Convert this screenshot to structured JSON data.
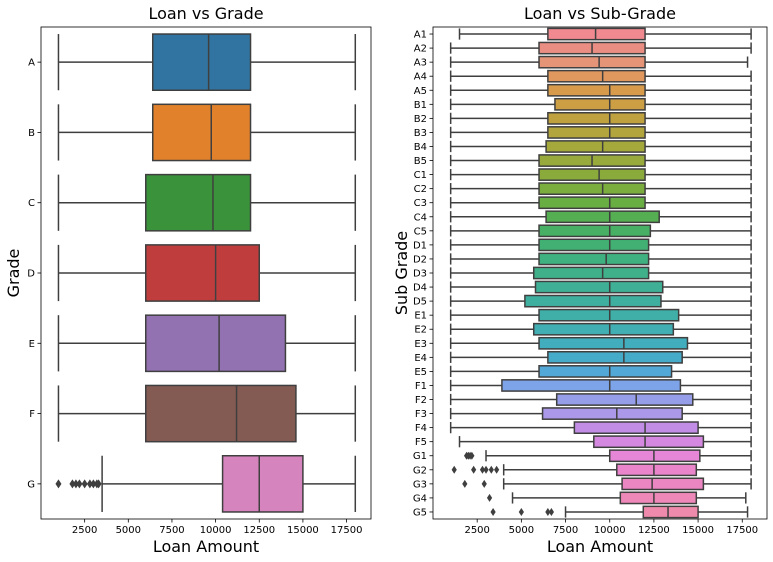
{
  "chart_data": [
    {
      "type": "boxplot",
      "orientation": "horizontal",
      "title": "Loan vs Grade",
      "xlabel": "Loan Amount",
      "ylabel": "Grade",
      "xlim": [
        0,
        18900
      ],
      "xticks": [
        2500,
        5000,
        7500,
        10000,
        12500,
        15000,
        17500
      ],
      "categories": [
        "A",
        "B",
        "C",
        "D",
        "E",
        "F",
        "G"
      ],
      "boxes": [
        {
          "label": "A",
          "whislo": 1000,
          "q1": 6400,
          "med": 9600,
          "q3": 12000,
          "whishi": 18000,
          "fliers": [],
          "color": "#3274a1"
        },
        {
          "label": "B",
          "whislo": 1000,
          "q1": 6400,
          "med": 9750,
          "q3": 12000,
          "whishi": 18000,
          "fliers": [],
          "color": "#e1812c"
        },
        {
          "label": "C",
          "whislo": 1000,
          "q1": 6000,
          "med": 9850,
          "q3": 12000,
          "whishi": 18000,
          "fliers": [],
          "color": "#3a923a"
        },
        {
          "label": "D",
          "whislo": 1000,
          "q1": 6000,
          "med": 10000,
          "q3": 12500,
          "whishi": 18000,
          "fliers": [],
          "color": "#c03d3e"
        },
        {
          "label": "E",
          "whislo": 1000,
          "q1": 6000,
          "med": 10200,
          "q3": 14000,
          "whishi": 18000,
          "fliers": [],
          "color": "#9372b2"
        },
        {
          "label": "F",
          "whislo": 1000,
          "q1": 6000,
          "med": 11200,
          "q3": 14600,
          "whishi": 18000,
          "fliers": [],
          "color": "#845b53"
        },
        {
          "label": "G",
          "whislo": 3500,
          "q1": 10400,
          "med": 12500,
          "q3": 15000,
          "whishi": 18000,
          "fliers": [
            1000,
            1800,
            2000,
            2200,
            2500,
            2800,
            3000,
            3200,
            3300
          ],
          "color": "#d684bd"
        }
      ]
    },
    {
      "type": "boxplot",
      "orientation": "horizontal",
      "title": "Loan vs Sub-Grade",
      "xlabel": "Loan Amount",
      "ylabel": "Sub Grade",
      "xlim": [
        0,
        18900
      ],
      "xticks": [
        2500,
        5000,
        7500,
        10000,
        12500,
        15000,
        17500
      ],
      "categories": [
        "A1",
        "A2",
        "A3",
        "A4",
        "A5",
        "B1",
        "B2",
        "B3",
        "B4",
        "B5",
        "C1",
        "C2",
        "C3",
        "C4",
        "C5",
        "D1",
        "D2",
        "D3",
        "D4",
        "D5",
        "E1",
        "E2",
        "E3",
        "E4",
        "E5",
        "F1",
        "F2",
        "F3",
        "F4",
        "F5",
        "G1",
        "G2",
        "G3",
        "G4",
        "G5"
      ],
      "boxes": [
        {
          "label": "A1",
          "whislo": 1500,
          "q1": 6500,
          "med": 9200,
          "q3": 12000,
          "whishi": 18000,
          "fliers": [],
          "color": "#f08a90"
        },
        {
          "label": "A2",
          "whislo": 1000,
          "q1": 6000,
          "med": 9000,
          "q3": 12000,
          "whishi": 18000,
          "fliers": [],
          "color": "#ea8e83"
        },
        {
          "label": "A3",
          "whislo": 1000,
          "q1": 6000,
          "med": 9400,
          "q3": 12000,
          "whishi": 17800,
          "fliers": [],
          "color": "#e59478"
        },
        {
          "label": "A4",
          "whislo": 1000,
          "q1": 6500,
          "med": 9600,
          "q3": 12000,
          "whishi": 18000,
          "fliers": [],
          "color": "#e0985f"
        },
        {
          "label": "A5",
          "whislo": 1000,
          "q1": 6500,
          "med": 10000,
          "q3": 12000,
          "whishi": 18000,
          "fliers": [],
          "color": "#d89b4c"
        },
        {
          "label": "B1",
          "whislo": 1000,
          "q1": 6900,
          "med": 10000,
          "q3": 12000,
          "whishi": 18000,
          "fliers": [],
          "color": "#cc9f45"
        },
        {
          "label": "B2",
          "whislo": 1000,
          "q1": 6500,
          "med": 10000,
          "q3": 12000,
          "whishi": 18000,
          "fliers": [],
          "color": "#bfa23f"
        },
        {
          "label": "B3",
          "whislo": 1000,
          "q1": 6500,
          "med": 10000,
          "q3": 12000,
          "whishi": 18000,
          "fliers": [],
          "color": "#b2a53d"
        },
        {
          "label": "B4",
          "whislo": 1000,
          "q1": 6400,
          "med": 9600,
          "q3": 12000,
          "whishi": 18000,
          "fliers": [],
          "color": "#a5a83b"
        },
        {
          "label": "B5",
          "whislo": 1000,
          "q1": 6000,
          "med": 9000,
          "q3": 12000,
          "whishi": 18000,
          "fliers": [],
          "color": "#98aa3b"
        },
        {
          "label": "C1",
          "whislo": 1000,
          "q1": 6000,
          "med": 9400,
          "q3": 12000,
          "whishi": 18000,
          "fliers": [],
          "color": "#8aab3c"
        },
        {
          "label": "C2",
          "whislo": 1000,
          "q1": 6000,
          "med": 9600,
          "q3": 12000,
          "whishi": 18000,
          "fliers": [],
          "color": "#7aad3e"
        },
        {
          "label": "C3",
          "whislo": 1000,
          "q1": 6000,
          "med": 10000,
          "q3": 12000,
          "whishi": 18000,
          "fliers": [],
          "color": "#69ae43"
        },
        {
          "label": "C4",
          "whislo": 1000,
          "q1": 6400,
          "med": 10000,
          "q3": 12800,
          "whishi": 18000,
          "fliers": [],
          "color": "#55af52"
        },
        {
          "label": "C5",
          "whislo": 1000,
          "q1": 6000,
          "med": 10000,
          "q3": 12300,
          "whishi": 18000,
          "fliers": [],
          "color": "#47b064"
        },
        {
          "label": "D1",
          "whislo": 1000,
          "q1": 6000,
          "med": 10000,
          "q3": 12200,
          "whishi": 18000,
          "fliers": [],
          "color": "#41b072"
        },
        {
          "label": "D2",
          "whislo": 1000,
          "q1": 6000,
          "med": 9800,
          "q3": 12200,
          "whishi": 18000,
          "fliers": [],
          "color": "#3fb07f"
        },
        {
          "label": "D3",
          "whislo": 1000,
          "q1": 5700,
          "med": 9600,
          "q3": 12200,
          "whishi": 18000,
          "fliers": [],
          "color": "#3fb08a"
        },
        {
          "label": "D4",
          "whislo": 1000,
          "q1": 5800,
          "med": 10000,
          "q3": 13000,
          "whishi": 18000,
          "fliers": [],
          "color": "#3fb095"
        },
        {
          "label": "D5",
          "whislo": 1000,
          "q1": 5200,
          "med": 10000,
          "q3": 12900,
          "whishi": 18000,
          "fliers": [],
          "color": "#3faf9f"
        },
        {
          "label": "E1",
          "whislo": 1000,
          "q1": 6000,
          "med": 10000,
          "q3": 13900,
          "whishi": 18000,
          "fliers": [],
          "color": "#3fafa8"
        },
        {
          "label": "E2",
          "whislo": 1000,
          "q1": 5700,
          "med": 10000,
          "q3": 13600,
          "whishi": 18000,
          "fliers": [],
          "color": "#40aeb2"
        },
        {
          "label": "E3",
          "whislo": 1000,
          "q1": 6000,
          "med": 10800,
          "q3": 14400,
          "whishi": 18000,
          "fliers": [],
          "color": "#42adbc"
        },
        {
          "label": "E4",
          "whislo": 1000,
          "q1": 6500,
          "med": 10800,
          "q3": 14100,
          "whishi": 18000,
          "fliers": [],
          "color": "#46abc8"
        },
        {
          "label": "E5",
          "whislo": 1000,
          "q1": 6000,
          "med": 10000,
          "q3": 13500,
          "whishi": 18000,
          "fliers": [],
          "color": "#52a8d7"
        },
        {
          "label": "F1",
          "whislo": 1000,
          "q1": 3900,
          "med": 10000,
          "q3": 14000,
          "whishi": 18000,
          "fliers": [],
          "color": "#7da4e8"
        },
        {
          "label": "F2",
          "whislo": 1000,
          "q1": 7000,
          "med": 11500,
          "q3": 14700,
          "whishi": 18000,
          "fliers": [],
          "color": "#979ee9"
        },
        {
          "label": "F3",
          "whislo": 1000,
          "q1": 6200,
          "med": 10400,
          "q3": 14100,
          "whishi": 18000,
          "fliers": [],
          "color": "#ac98e9"
        },
        {
          "label": "F4",
          "whislo": 1000,
          "q1": 8000,
          "med": 12000,
          "q3": 15000,
          "whishi": 18000,
          "fliers": [],
          "color": "#c28ee5"
        },
        {
          "label": "F5",
          "whislo": 1500,
          "q1": 9100,
          "med": 12000,
          "q3": 15300,
          "whishi": 18000,
          "fliers": [],
          "color": "#d488e0"
        },
        {
          "label": "G1",
          "whislo": 3000,
          "q1": 10000,
          "med": 12500,
          "q3": 15100,
          "whishi": 18000,
          "fliers": [
            1900,
            2000,
            2100,
            2200
          ],
          "color": "#e586d7"
        },
        {
          "label": "G2",
          "whislo": 4000,
          "q1": 10400,
          "med": 12500,
          "q3": 14900,
          "whishi": 18000,
          "fliers": [
            1200,
            2300,
            2800,
            3000,
            3300,
            3600
          ],
          "color": "#ea85cc"
        },
        {
          "label": "G3",
          "whislo": 4000,
          "q1": 10700,
          "med": 12400,
          "q3": 15300,
          "whishi": 18000,
          "fliers": [
            1800,
            2900
          ],
          "color": "#ec86c3"
        },
        {
          "label": "G4",
          "whislo": 4500,
          "q1": 10600,
          "med": 12500,
          "q3": 14900,
          "whishi": 17700,
          "fliers": [
            3200
          ],
          "color": "#ee88b8"
        },
        {
          "label": "G5",
          "whislo": 7500,
          "q1": 11900,
          "med": 13300,
          "q3": 15000,
          "whishi": 17800,
          "fliers": [
            3400,
            5000,
            6500,
            6700
          ],
          "color": "#f08aac"
        }
      ]
    }
  ]
}
